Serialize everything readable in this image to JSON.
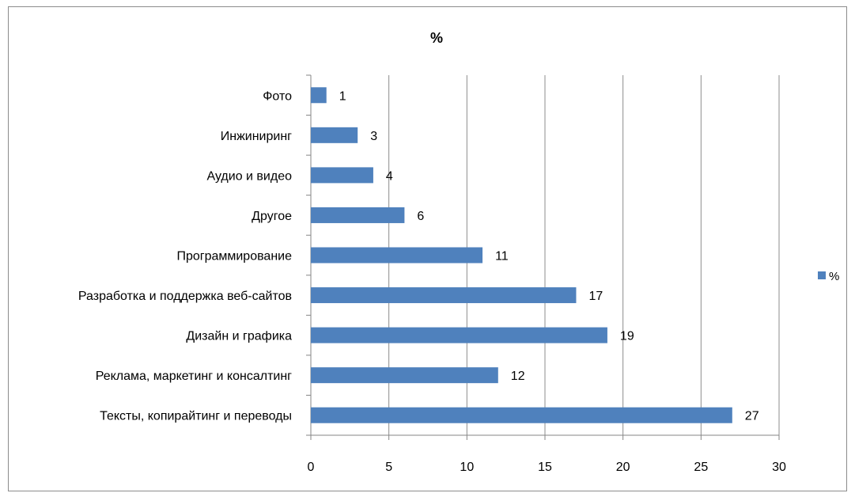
{
  "chart_data": {
    "type": "bar",
    "orientation": "horizontal",
    "title": "%",
    "xlabel": "",
    "ylabel": "",
    "xlim": [
      0,
      30
    ],
    "xticks": [
      0,
      5,
      10,
      15,
      20,
      25,
      30
    ],
    "grid": "vertical",
    "legend_position": "right",
    "bar_color": "#4f81bd",
    "categories": [
      "Фото",
      "Инжиниринг",
      "Аудио и видео",
      "Другое",
      "Программирование",
      "Разработка и поддержка веб-сайтов",
      "Дизайн и графика",
      "Реклама, маркетинг и консалтинг",
      "Тексты, копирайтинг и переводы"
    ],
    "series": [
      {
        "name": "%",
        "values": [
          1,
          3,
          4,
          6,
          11,
          17,
          19,
          12,
          27
        ]
      }
    ]
  }
}
